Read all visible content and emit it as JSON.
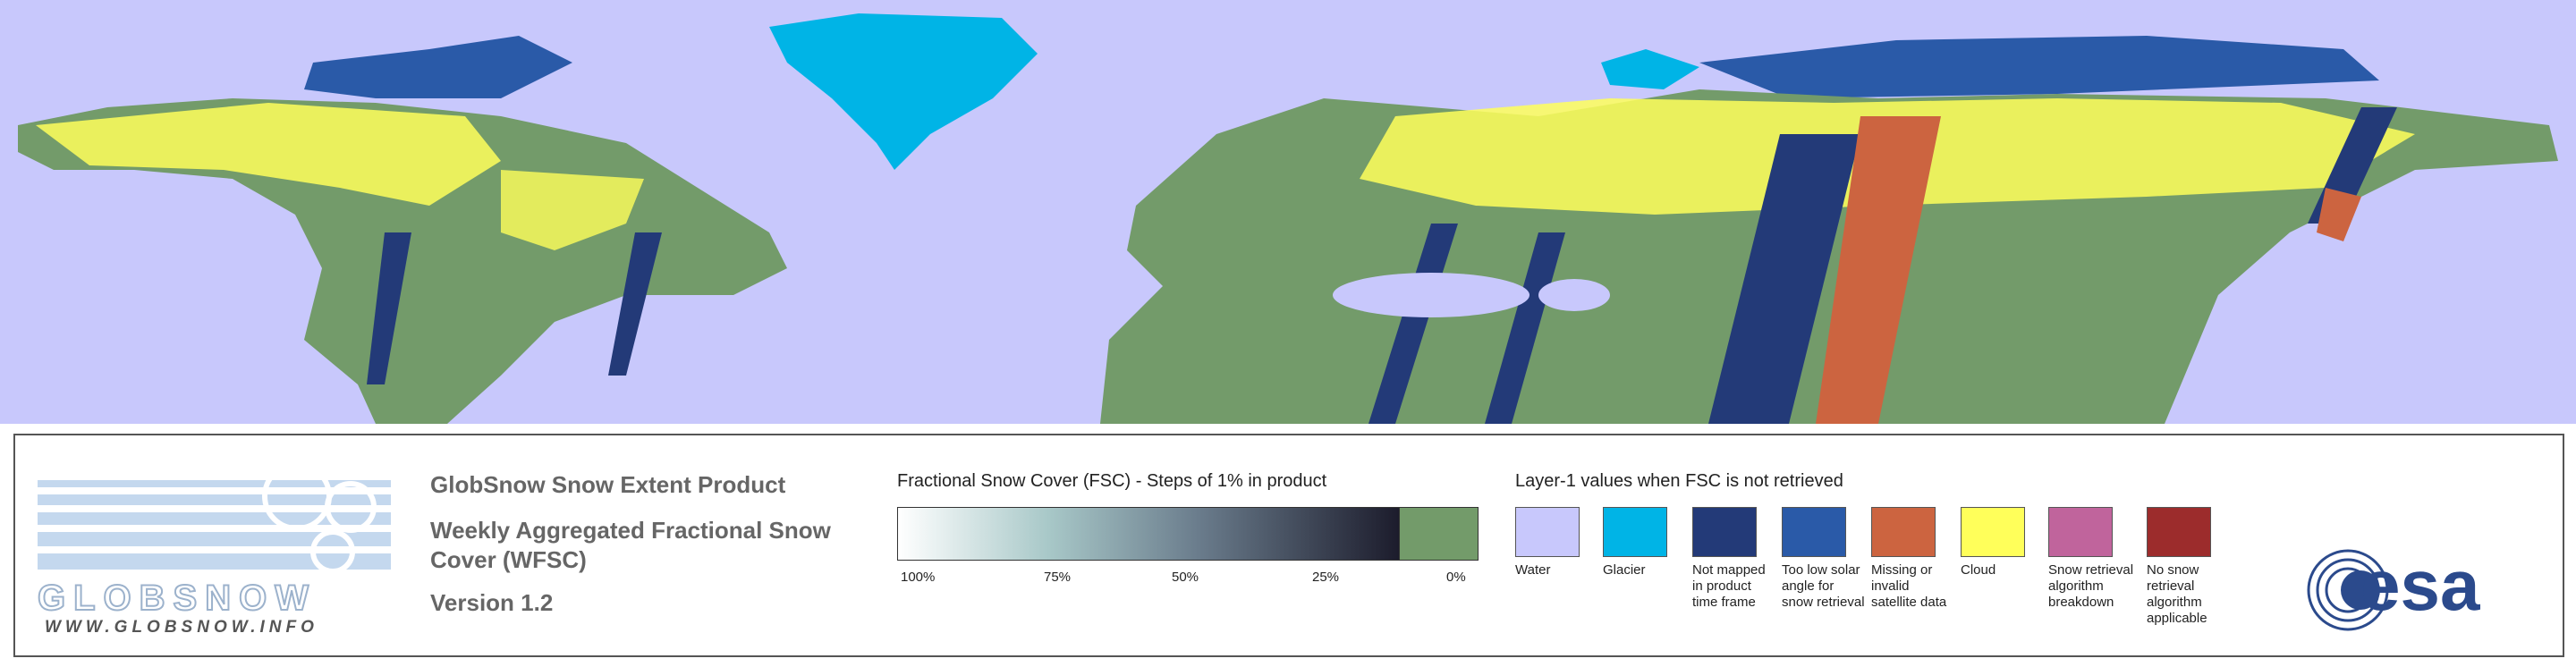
{
  "logo": {
    "name": "GLOBSNOW",
    "url": "WWW.GLOBSNOW.INFO"
  },
  "product": {
    "title": "GlobSnow Snow Extent Product",
    "subtitle": "Weekly Aggregated Fractional Snow Cover (WFSC)",
    "version": "Version 1.2"
  },
  "fsc_legend": {
    "title": "Fractional Snow Cover (FSC) - Steps of 1% in product",
    "ticks": [
      "100%",
      "75%",
      "50%",
      "25%",
      "0%"
    ]
  },
  "layer1_legend": {
    "title": "Layer-1 values when FSC is not retrieved",
    "items": [
      {
        "label": "Water",
        "color": "#c8c8fc"
      },
      {
        "label": "Glacier",
        "color": "#00b4e6"
      },
      {
        "label": "Not mapped in product time frame",
        "color": "#233a78"
      },
      {
        "label": "Too low solar angle for snow retrieval",
        "color": "#2a5aa8"
      },
      {
        "label": "Missing or invalid satellite data",
        "color": "#cc6440"
      },
      {
        "label": "Cloud",
        "color": "#ffff5a"
      },
      {
        "label": "Snow retrieval algorithm breakdown",
        "color": "#c0649c"
      },
      {
        "label": "No snow retrieval algorithm applicable",
        "color": "#9c2c2c"
      }
    ]
  },
  "esa_logo": "esa"
}
